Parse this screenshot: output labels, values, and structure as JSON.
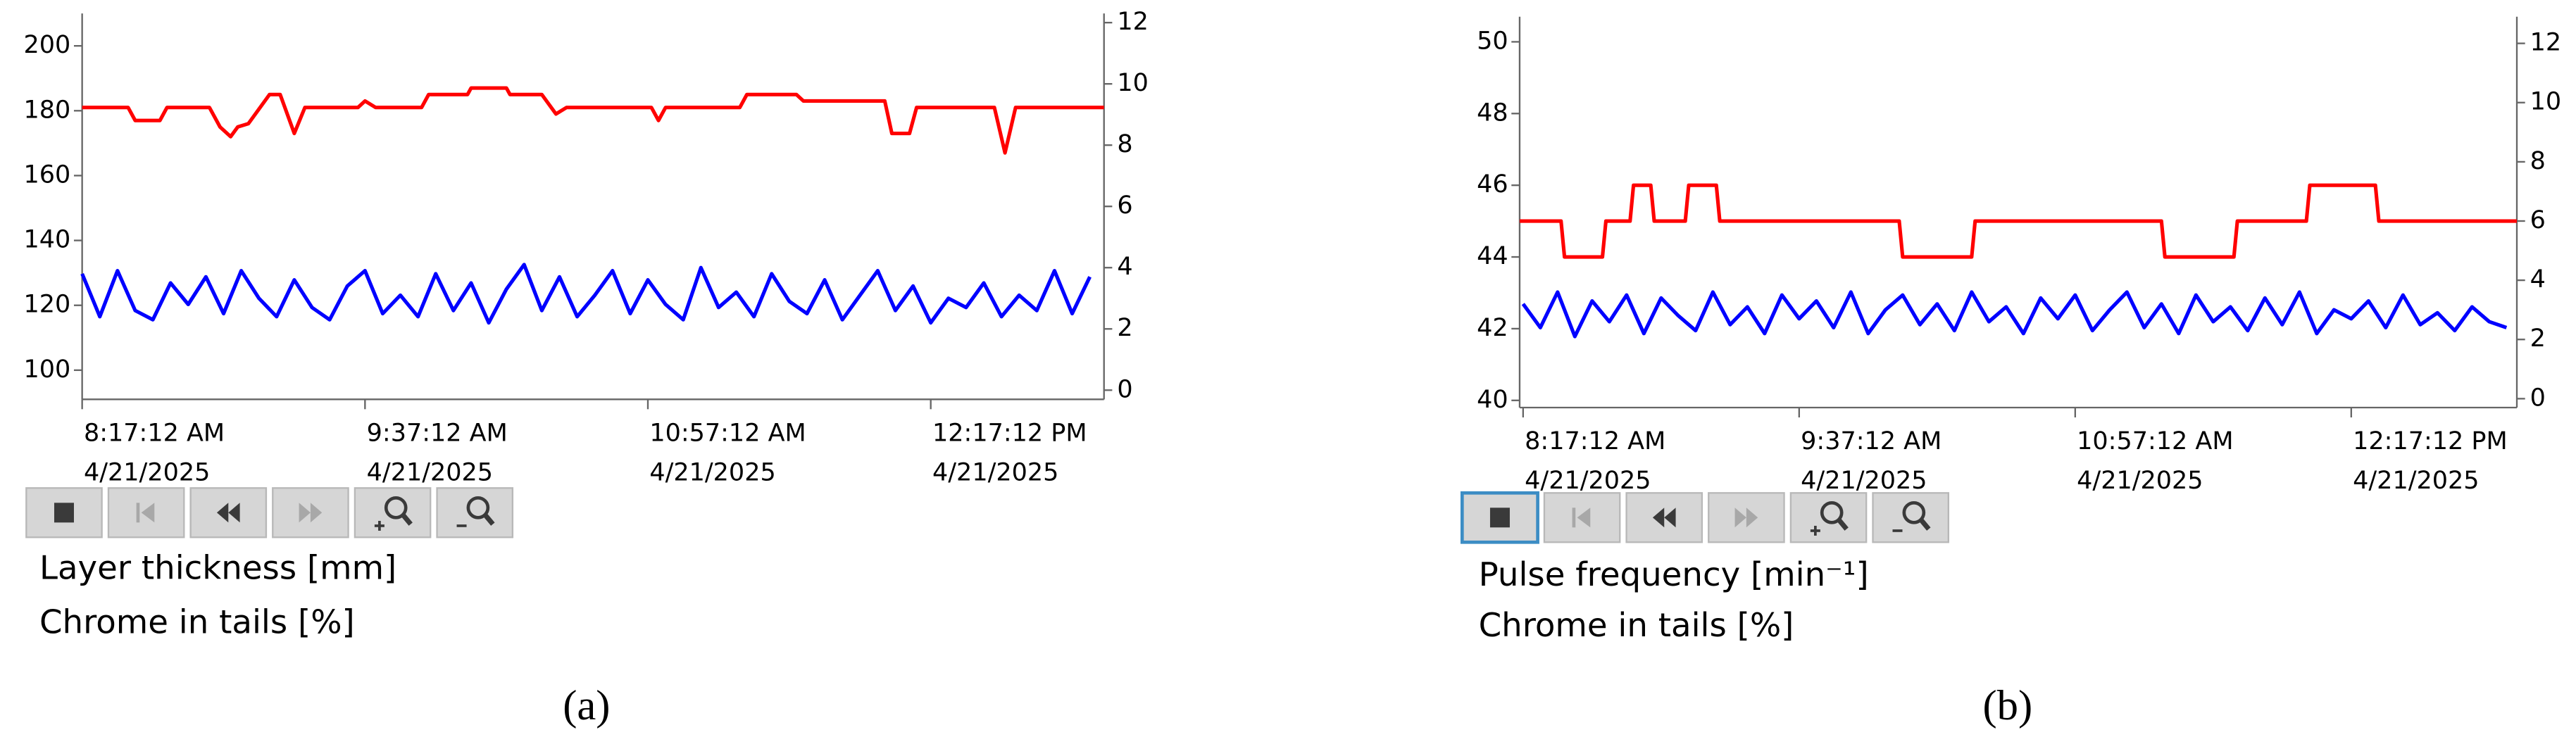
{
  "chart_data": [
    {
      "type": "line",
      "caption": "(a)",
      "xlim": [
        "2025-04-21T08:17:12",
        "2025-04-21T13:06:12"
      ],
      "xticks": [
        {
          "value": "2025-04-21T08:17:12",
          "label": "8:17:12 AM",
          "date": "4/21/2025"
        },
        {
          "value": "2025-04-21T09:37:12",
          "label": "9:37:12 AM",
          "date": "4/21/2025"
        },
        {
          "value": "2025-04-21T10:57:12",
          "label": "10:57:12 AM",
          "date": "4/21/2025"
        },
        {
          "value": "2025-04-21T12:17:12",
          "label": "12:17:12 PM",
          "date": "4/21/2025"
        }
      ],
      "ylim": [
        91,
        210
      ],
      "yticks": [
        100,
        120,
        140,
        160,
        180,
        200
      ],
      "y2lim": [
        -0.3,
        12.3
      ],
      "y2ticks": [
        0,
        2,
        4,
        6,
        8,
        10,
        12
      ],
      "series": [
        {
          "name": "Layer thickness [mm]",
          "color": "#ff0000",
          "axis": "y",
          "x": [
            "2025-04-21T08:17:12",
            "2025-04-21T08:30:12",
            "2025-04-21T08:32:12",
            "2025-04-21T08:39:12",
            "2025-04-21T08:41:12",
            "2025-04-21T08:53:12",
            "2025-04-21T08:56:12",
            "2025-04-21T08:59:12",
            "2025-04-21T09:01:12",
            "2025-04-21T09:04:12",
            "2025-04-21T09:10:12",
            "2025-04-21T09:13:12",
            "2025-04-21T09:17:12",
            "2025-04-21T09:20:12",
            "2025-04-21T09:35:12",
            "2025-04-21T09:37:12",
            "2025-04-21T09:40:12",
            "2025-04-21T09:53:12",
            "2025-04-21T09:55:12",
            "2025-04-21T10:06:12",
            "2025-04-21T10:07:12",
            "2025-04-21T10:17:12",
            "2025-04-21T10:18:12",
            "2025-04-21T10:27:12",
            "2025-04-21T10:31:12",
            "2025-04-21T10:34:12",
            "2025-04-21T10:58:12",
            "2025-04-21T11:00:12",
            "2025-04-21T11:02:12",
            "2025-04-21T11:23:12",
            "2025-04-21T11:25:12",
            "2025-04-21T11:39:12",
            "2025-04-21T11:41:12",
            "2025-04-21T12:04:12",
            "2025-04-21T12:06:12",
            "2025-04-21T12:11:12",
            "2025-04-21T12:13:12",
            "2025-04-21T12:35:12",
            "2025-04-21T12:38:12",
            "2025-04-21T12:41:12",
            "2025-04-21T13:06:12"
          ],
          "values": [
            181,
            181,
            177,
            177,
            181,
            181,
            175,
            172,
            175,
            176,
            185,
            185,
            173,
            181,
            181,
            183,
            181,
            181,
            185,
            185,
            187,
            187,
            185,
            185,
            179,
            181,
            181,
            177,
            181,
            181,
            185,
            185,
            183,
            183,
            173,
            173,
            181,
            181,
            167,
            181,
            181
          ]
        },
        {
          "name": "Chrome in tails [%]",
          "color": "#0000ff",
          "axis": "y2",
          "x": [
            "2025-04-21T08:17:12",
            "2025-04-21T08:22:12",
            "2025-04-21T08:27:12",
            "2025-04-21T08:32:12",
            "2025-04-21T08:37:12",
            "2025-04-21T08:42:12",
            "2025-04-21T08:47:12",
            "2025-04-21T08:52:12",
            "2025-04-21T08:57:12",
            "2025-04-21T09:02:12",
            "2025-04-21T09:07:12",
            "2025-04-21T09:12:12",
            "2025-04-21T09:17:12",
            "2025-04-21T09:22:12",
            "2025-04-21T09:27:12",
            "2025-04-21T09:32:12",
            "2025-04-21T09:37:12",
            "2025-04-21T09:42:12",
            "2025-04-21T09:47:12",
            "2025-04-21T09:52:12",
            "2025-04-21T09:57:12",
            "2025-04-21T10:02:12",
            "2025-04-21T10:07:12",
            "2025-04-21T10:12:12",
            "2025-04-21T10:17:12",
            "2025-04-21T10:22:12",
            "2025-04-21T10:27:12",
            "2025-04-21T10:32:12",
            "2025-04-21T10:37:12",
            "2025-04-21T10:42:12",
            "2025-04-21T10:47:12",
            "2025-04-21T10:52:12",
            "2025-04-21T10:57:12",
            "2025-04-21T11:02:12",
            "2025-04-21T11:07:12",
            "2025-04-21T11:12:12",
            "2025-04-21T11:17:12",
            "2025-04-21T11:22:12",
            "2025-04-21T11:27:12",
            "2025-04-21T11:32:12",
            "2025-04-21T11:37:12",
            "2025-04-21T11:42:12",
            "2025-04-21T11:47:12",
            "2025-04-21T11:52:12",
            "2025-04-21T11:57:12",
            "2025-04-21T12:02:12",
            "2025-04-21T12:07:12",
            "2025-04-21T12:12:12",
            "2025-04-21T12:17:12",
            "2025-04-21T12:22:12",
            "2025-04-21T12:27:12",
            "2025-04-21T12:32:12",
            "2025-04-21T12:37:12",
            "2025-04-21T12:42:12",
            "2025-04-21T12:47:12",
            "2025-04-21T12:52:12",
            "2025-04-21T12:57:12",
            "2025-04-21T13:02:12"
          ],
          "values": [
            3.8,
            2.4,
            3.9,
            2.6,
            2.3,
            3.5,
            2.8,
            3.7,
            2.5,
            3.9,
            3.0,
            2.4,
            3.6,
            2.7,
            2.3,
            3.4,
            3.9,
            2.5,
            3.1,
            2.4,
            3.8,
            2.6,
            3.5,
            2.2,
            3.3,
            4.1,
            2.6,
            3.7,
            2.4,
            3.1,
            3.9,
            2.5,
            3.6,
            2.8,
            2.3,
            4.0,
            2.7,
            3.2,
            2.4,
            3.8,
            2.9,
            2.5,
            3.6,
            2.3,
            3.1,
            3.9,
            2.6,
            3.4,
            2.2,
            3.0,
            2.7,
            3.5,
            2.4,
            3.1,
            2.6,
            3.9,
            2.5,
            3.7
          ]
        }
      ]
    },
    {
      "type": "line",
      "caption": "(b)",
      "xlim": [
        "2025-04-21T08:16:12",
        "2025-04-21T13:05:12"
      ],
      "xticks": [
        {
          "value": "2025-04-21T08:17:12",
          "label": "8:17:12 AM",
          "date": "4/21/2025"
        },
        {
          "value": "2025-04-21T09:37:12",
          "label": "9:37:12 AM",
          "date": "4/21/2025"
        },
        {
          "value": "2025-04-21T10:57:12",
          "label": "10:57:12 AM",
          "date": "4/21/2025"
        },
        {
          "value": "2025-04-21T12:17:12",
          "label": "12:17:12 PM",
          "date": "4/21/2025"
        }
      ],
      "ylim": [
        39.8,
        50.7
      ],
      "yticks": [
        40,
        42,
        44,
        46,
        48,
        50
      ],
      "y2lim": [
        -0.3,
        12.9
      ],
      "y2ticks": [
        0,
        2,
        4,
        6,
        8,
        10,
        12
      ],
      "series": [
        {
          "name": "Pulse frequency [min⁻¹]",
          "color": "#ff0000",
          "axis": "y",
          "x": [
            "2025-04-21T08:16:12",
            "2025-04-21T08:28:12",
            "2025-04-21T08:29:12",
            "2025-04-21T08:40:12",
            "2025-04-21T08:41:12",
            "2025-04-21T08:48:12",
            "2025-04-21T08:49:12",
            "2025-04-21T08:54:12",
            "2025-04-21T08:55:12",
            "2025-04-21T09:04:12",
            "2025-04-21T09:05:12",
            "2025-04-21T09:13:12",
            "2025-04-21T09:14:12",
            "2025-04-21T10:06:12",
            "2025-04-21T10:07:12",
            "2025-04-21T10:27:12",
            "2025-04-21T10:28:12",
            "2025-04-21T11:22:12",
            "2025-04-21T11:23:12",
            "2025-04-21T11:43:12",
            "2025-04-21T11:44:12",
            "2025-04-21T12:04:12",
            "2025-04-21T12:05:12",
            "2025-04-21T12:24:12",
            "2025-04-21T12:25:12",
            "2025-04-21T13:05:12"
          ],
          "values": [
            45,
            45,
            44,
            44,
            45,
            45,
            46,
            46,
            45,
            45,
            46,
            46,
            45,
            45,
            44,
            44,
            45,
            45,
            44,
            44,
            45,
            45,
            46,
            46,
            45,
            45
          ]
        },
        {
          "name": "Chrome in tails [%]",
          "color": "#0000ff",
          "axis": "y2",
          "x": [
            "2025-04-21T08:17:12",
            "2025-04-21T08:22:12",
            "2025-04-21T08:27:12",
            "2025-04-21T08:32:12",
            "2025-04-21T08:37:12",
            "2025-04-21T08:42:12",
            "2025-04-21T08:47:12",
            "2025-04-21T08:52:12",
            "2025-04-21T08:57:12",
            "2025-04-21T09:02:12",
            "2025-04-21T09:07:12",
            "2025-04-21T09:12:12",
            "2025-04-21T09:17:12",
            "2025-04-21T09:22:12",
            "2025-04-21T09:27:12",
            "2025-04-21T09:32:12",
            "2025-04-21T09:37:12",
            "2025-04-21T09:42:12",
            "2025-04-21T09:47:12",
            "2025-04-21T09:52:12",
            "2025-04-21T09:57:12",
            "2025-04-21T10:02:12",
            "2025-04-21T10:07:12",
            "2025-04-21T10:12:12",
            "2025-04-21T10:17:12",
            "2025-04-21T10:22:12",
            "2025-04-21T10:27:12",
            "2025-04-21T10:32:12",
            "2025-04-21T10:37:12",
            "2025-04-21T10:42:12",
            "2025-04-21T10:47:12",
            "2025-04-21T10:52:12",
            "2025-04-21T10:57:12",
            "2025-04-21T11:02:12",
            "2025-04-21T11:07:12",
            "2025-04-21T11:12:12",
            "2025-04-21T11:17:12",
            "2025-04-21T11:22:12",
            "2025-04-21T11:27:12",
            "2025-04-21T11:32:12",
            "2025-04-21T11:37:12",
            "2025-04-21T11:42:12",
            "2025-04-21T11:47:12",
            "2025-04-21T11:52:12",
            "2025-04-21T11:57:12",
            "2025-04-21T12:02:12",
            "2025-04-21T12:07:12",
            "2025-04-21T12:12:12",
            "2025-04-21T12:17:12",
            "2025-04-21T12:22:12",
            "2025-04-21T12:27:12",
            "2025-04-21T12:32:12",
            "2025-04-21T12:37:12",
            "2025-04-21T12:42:12",
            "2025-04-21T12:47:12",
            "2025-04-21T12:52:12",
            "2025-04-21T12:57:12",
            "2025-04-21T13:02:12"
          ],
          "values": [
            3.2,
            2.4,
            3.6,
            2.1,
            3.3,
            2.6,
            3.5,
            2.2,
            3.4,
            2.8,
            2.3,
            3.6,
            2.5,
            3.1,
            2.2,
            3.5,
            2.7,
            3.3,
            2.4,
            3.6,
            2.2,
            3.0,
            3.5,
            2.5,
            3.2,
            2.3,
            3.6,
            2.6,
            3.1,
            2.2,
            3.4,
            2.7,
            3.5,
            2.3,
            3.0,
            3.6,
            2.4,
            3.2,
            2.2,
            3.5,
            2.6,
            3.1,
            2.3,
            3.4,
            2.5,
            3.6,
            2.2,
            3.0,
            2.7,
            3.3,
            2.4,
            3.5,
            2.5,
            2.9,
            2.3,
            3.1,
            2.6,
            2.4
          ]
        }
      ]
    }
  ]
}
